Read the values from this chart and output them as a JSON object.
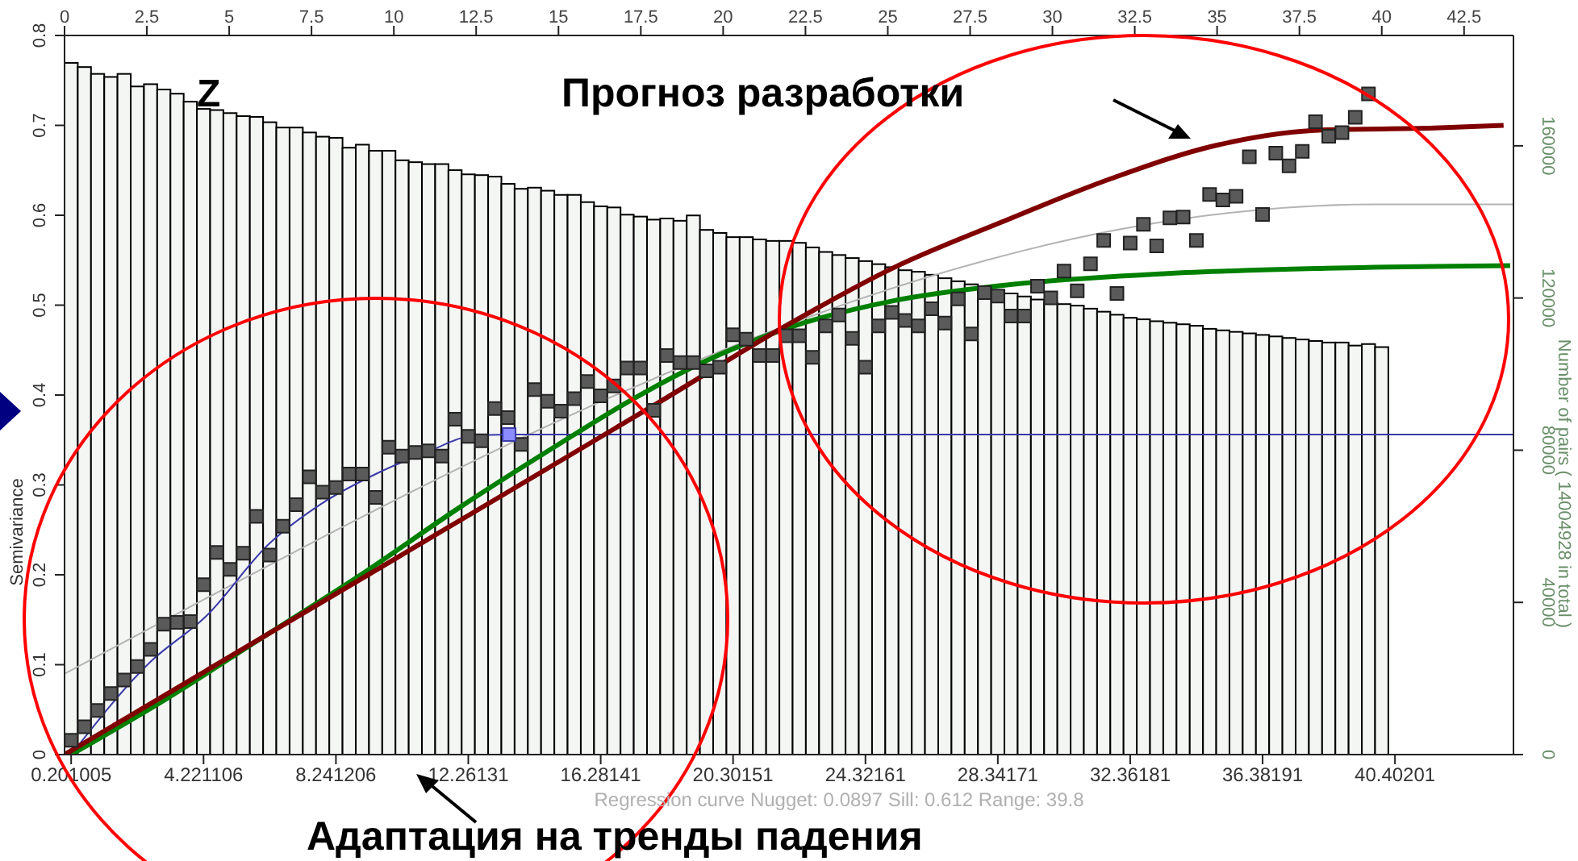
{
  "chart_data": {
    "type": "bar",
    "ylabel": "Semivariance",
    "y2label": "Number of pairs   ( 14004928 in total )",
    "annotations": [
      "Z",
      "Прогноз разработки",
      "Адаптация на тренды падения",
      "Regression curve   Nugget: 0.0897   Sill: 0.612   Range: 39.8"
    ],
    "xlim": [
      0,
      44
    ],
    "xticks": [
      0.201005,
      4.221106,
      8.241206,
      12.26131,
      16.28141,
      20.30151,
      24.32161,
      28.34171,
      32.36181,
      36.38191,
      40.40201
    ],
    "x2lim": [
      0,
      44
    ],
    "x2ticks": [
      0,
      2.5,
      5,
      7.5,
      10,
      12.5,
      15,
      17.5,
      20,
      22.5,
      25,
      27.5,
      30,
      32.5,
      35,
      37.5,
      40,
      42.5
    ],
    "ylim": [
      0,
      0.8
    ],
    "yticks": [
      0,
      0.1,
      0.2,
      0.3,
      0.4,
      0.5,
      0.6,
      0.7,
      0.8
    ],
    "y2lim": [
      0,
      189000
    ],
    "y2ticks": [
      0,
      40000,
      80000,
      120000,
      160000
    ],
    "x": [
      0.201,
      0.603,
      1.005,
      1.407,
      1.809,
      2.211,
      2.613,
      3.015,
      3.417,
      3.819,
      4.221,
      4.623,
      5.025,
      5.427,
      5.829,
      6.231,
      6.633,
      7.035,
      7.437,
      7.839,
      8.241,
      8.643,
      9.045,
      9.447,
      9.849,
      10.251,
      10.653,
      11.055,
      11.457,
      11.859,
      12.261,
      12.663,
      13.065,
      13.467,
      13.869,
      14.271,
      14.673,
      15.075,
      15.477,
      15.879,
      16.281,
      16.683,
      17.085,
      17.487,
      17.889,
      18.291,
      18.693,
      19.095,
      19.497,
      19.899,
      20.301,
      20.703,
      21.105,
      21.507,
      21.909,
      22.311,
      22.713,
      23.115,
      23.517,
      23.919,
      24.321,
      24.723,
      25.125,
      25.527,
      25.929,
      26.331,
      26.733,
      27.135,
      27.537,
      27.939,
      28.341,
      28.743,
      29.145,
      29.547,
      29.949,
      30.351,
      30.753,
      31.155,
      31.557,
      31.959,
      32.361,
      32.763,
      33.165,
      33.567,
      33.969,
      34.371,
      34.773,
      35.175,
      35.577,
      35.979,
      36.381,
      36.783,
      37.185,
      37.587,
      37.989,
      38.391,
      38.793,
      39.195,
      39.597,
      39.999
    ],
    "series": [
      {
        "axis": "y2",
        "color": "#f4f6f4",
        "values": [
          181800,
          180700,
          178900,
          178100,
          178900,
          175600,
          176200,
          174800,
          173700,
          171600,
          169700,
          169400,
          168600,
          167800,
          167600,
          166200,
          164800,
          164800,
          163500,
          162400,
          162100,
          159500,
          160300,
          158700,
          158700,
          156200,
          155700,
          155200,
          155200,
          153600,
          152500,
          152300,
          151900,
          150000,
          148700,
          149000,
          148200,
          147100,
          147100,
          145200,
          144100,
          143800,
          141900,
          141400,
          140600,
          140900,
          140300,
          141700,
          137900,
          137100,
          136000,
          136000,
          135400,
          135000,
          135000,
          134500,
          133300,
          132100,
          131300,
          130500,
          129700,
          128900,
          128100,
          127300,
          126900,
          126100,
          125200,
          124400,
          123600,
          122800,
          122000,
          121200,
          120400,
          119600,
          118800,
          118400,
          118000,
          117200,
          116400,
          115600,
          114800,
          114400,
          113900,
          113500,
          113100,
          112700,
          111900,
          111500,
          111100,
          110700,
          110300,
          109900,
          109500,
          109100,
          108700,
          108300,
          108300,
          107500,
          107900,
          107100
        ]
      },
      {
        "type": "scatter",
        "marker": "square",
        "color": "#5a5a5a",
        "values": [
          0.016,
          0.031,
          0.049,
          0.068,
          0.083,
          0.098,
          0.117,
          0.145,
          0.147,
          0.148,
          0.189,
          0.225,
          0.206,
          0.224,
          0.265,
          0.222,
          0.254,
          0.278,
          0.309,
          0.292,
          0.297,
          0.312,
          0.312,
          0.286,
          0.342,
          0.332,
          0.336,
          0.338,
          0.332,
          0.373,
          0.354,
          0.349,
          0.385,
          0.375,
          0.345,
          0.406,
          0.393,
          0.382,
          0.396,
          0.415,
          0.399,
          0.41,
          0.43,
          0.43,
          0.383,
          0.444,
          0.436,
          0.436,
          0.427,
          0.431,
          0.467,
          0.462,
          0.444,
          0.444,
          0.466,
          0.466,
          0.442,
          0.477,
          0.489,
          0.463,
          0.431,
          0.477,
          0.492,
          0.483,
          0.477,
          0.496,
          0.48,
          0.507,
          0.468,
          0.514,
          0.51,
          0.488,
          0.488,
          0.521,
          0.508,
          0.538,
          0.516,
          0.546,
          0.572,
          0.513,
          0.569,
          0.59,
          0.566,
          0.597,
          0.598,
          0.572,
          0.623,
          0.617,
          0.621,
          0.665,
          0.601,
          0.669,
          0.655,
          0.671,
          0.704,
          0.688,
          0.692,
          0.709,
          0.735,
          null
        ]
      },
      {
        "type": "line",
        "color": "#b4b4b4",
        "x": [
          0,
          4,
          8,
          12,
          16,
          20,
          24,
          28,
          32,
          36,
          39.8,
          44
        ],
        "values": [
          0.09,
          0.168,
          0.245,
          0.319,
          0.388,
          0.45,
          0.505,
          0.55,
          0.584,
          0.605,
          0.612,
          0.612
        ]
      },
      {
        "type": "line",
        "color": "#3a3aa8",
        "x": [
          0.2,
          2.6,
          4.3,
          6.2,
          7.8,
          9.5,
          11.1,
          12.3,
          13.5,
          44
        ],
        "values": [
          0,
          0.103,
          0.154,
          0.234,
          0.279,
          0.313,
          0.338,
          0.354,
          0.356,
          0.356
        ]
      },
      {
        "type": "scatter",
        "marker": "square",
        "color": "#8c8cff",
        "x": [
          13.5
        ],
        "values": [
          0.356
        ]
      },
      {
        "type": "line",
        "color": "#008000",
        "x": [
          0.2,
          3,
          6,
          9,
          12,
          15,
          17,
          19.3,
          22,
          25.2,
          28.5,
          33.4,
          38.3,
          43.9
        ],
        "values": [
          0,
          0.06,
          0.13,
          0.2,
          0.275,
          0.345,
          0.39,
          0.435,
          0.475,
          0.505,
          0.522,
          0.535,
          0.541,
          0.544
        ]
      },
      {
        "type": "line",
        "color": "#800000",
        "x": [
          0,
          10,
          18.1,
          22,
          25.2,
          28.5,
          31.8,
          35,
          38.3,
          41.6,
          43.7
        ],
        "values": [
          0,
          0.217,
          0.393,
          0.479,
          0.542,
          0.593,
          0.641,
          0.678,
          0.695,
          0.697,
          0.7
        ]
      }
    ]
  }
}
